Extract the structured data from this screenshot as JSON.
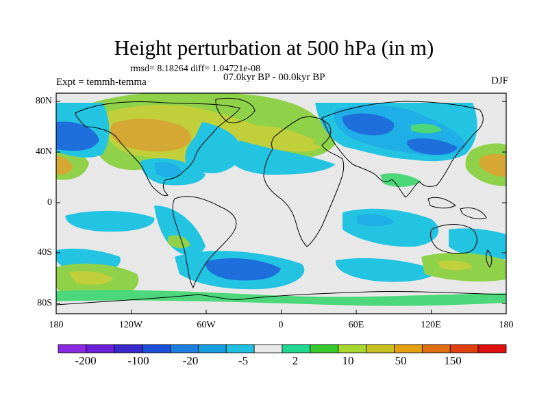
{
  "title": "Height perturbation at 500 hPa (in m)",
  "stats": "rmsd= 8.18264 diff= 1.04721e-08",
  "period": "07.0kyr BP - 00.0kyr BP",
  "experiment": "Expt = temmh-temma",
  "season": "DJF",
  "lat_labels": [
    "80N",
    "40N",
    "0",
    "40S",
    "80S"
  ],
  "lon_labels": [
    "180",
    "120W",
    "60W",
    "0",
    "60E",
    "120E",
    "180"
  ],
  "colorbar": {
    "labels": [
      "-200",
      "-100",
      "-20",
      "-5",
      "2",
      "10",
      "50",
      "150"
    ],
    "colors": [
      "#8a2be2",
      "#6a1fd8",
      "#3a28c8",
      "#1e4fd8",
      "#1f7fe0",
      "#199fe0",
      "#20c0e0",
      "#e8e8e8",
      "#20d890",
      "#38c830",
      "#a8d830",
      "#c8c020",
      "#e0a010",
      "#e07010",
      "#e04010",
      "#e01010"
    ]
  },
  "field_colors": {
    "background": "#e8e8e8",
    "strong_positive": "#d4a832",
    "positive": "#c0cf3a",
    "weak_positive": "#8fd24a",
    "slight_positive": "#4cd87a",
    "slight_negative": "#22c4e2",
    "negative": "#1faee6",
    "strong_negative": "#1e6fdc",
    "very_negative": "#1e50d8"
  }
}
